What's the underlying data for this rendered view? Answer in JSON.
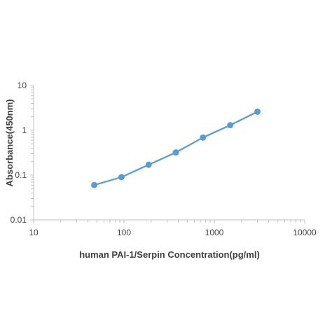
{
  "chart_data": {
    "type": "line",
    "title": "",
    "xlabel": "human PAI-1/Serpin Concentration(pg/ml)",
    "ylabel": "Absorbance(450nm)",
    "xscale": "log",
    "yscale": "log",
    "xlim": [
      10,
      10000
    ],
    "ylim": [
      0.01,
      10
    ],
    "xticks": [
      10,
      100,
      1000,
      10000
    ],
    "xtick_labels": [
      "10",
      "100",
      "1000",
      "10000"
    ],
    "yticks": [
      0.01,
      0.1,
      1,
      10
    ],
    "ytick_labels": [
      "0.01",
      "0.1",
      "1",
      "10"
    ],
    "grid": false,
    "legend": "none",
    "series": [
      {
        "x": [
          46.9,
          93.8,
          187.5,
          375,
          750,
          1500,
          3000
        ],
        "y": [
          0.06,
          0.09,
          0.17,
          0.32,
          0.69,
          1.3,
          2.6
        ],
        "color": "#5b9bd5"
      }
    ]
  }
}
